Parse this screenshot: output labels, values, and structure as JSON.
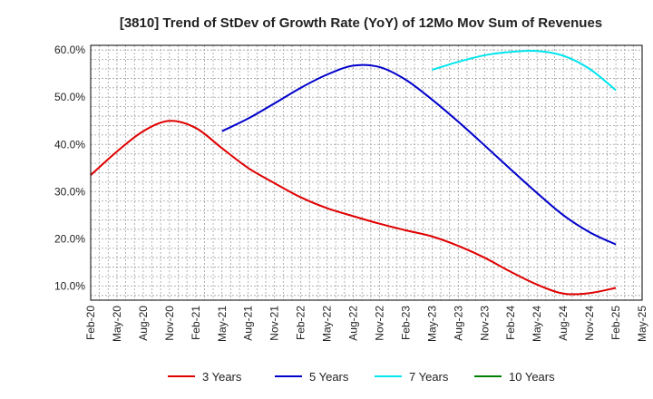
{
  "chart_data": {
    "type": "line",
    "title": "[3810]  Trend of StDev of Growth Rate (YoY) of 12Mo Mov Sum of Revenues",
    "xlabel": "",
    "ylabel": "",
    "ylim": [
      7,
      61
    ],
    "yticks": [
      10,
      20,
      30,
      40,
      50,
      60
    ],
    "ytick_labels": [
      "10.0%",
      "20.0%",
      "30.0%",
      "40.0%",
      "50.0%",
      "60.0%"
    ],
    "x_categories": [
      "Feb-20",
      "May-20",
      "Aug-20",
      "Nov-20",
      "Feb-21",
      "May-21",
      "Aug-21",
      "Nov-21",
      "Feb-22",
      "May-22",
      "Aug-22",
      "Nov-22",
      "Feb-23",
      "May-23",
      "Aug-23",
      "Nov-23",
      "Feb-24",
      "May-24",
      "Aug-24",
      "Nov-24",
      "Feb-25",
      "May-25"
    ],
    "grid": true,
    "legend_position": "bottom",
    "series": [
      {
        "name": "3 Years",
        "color": "#e00000",
        "values": [
          33.5,
          38.5,
          42.8,
          45.0,
          43.5,
          39.2,
          35.0,
          31.8,
          28.8,
          26.5,
          24.8,
          23.2,
          21.8,
          20.5,
          18.5,
          16.0,
          13.0,
          10.3,
          8.4,
          8.5,
          9.6,
          null
        ]
      },
      {
        "name": "5 Years",
        "color": "#0000cc",
        "values": [
          null,
          null,
          null,
          null,
          null,
          42.8,
          45.5,
          48.7,
          52.0,
          54.8,
          56.7,
          56.4,
          53.7,
          49.5,
          44.8,
          39.8,
          34.7,
          29.7,
          25.0,
          21.4,
          18.8,
          null
        ]
      },
      {
        "name": "7 Years",
        "color": "#00e5ee",
        "values": [
          null,
          null,
          null,
          null,
          null,
          null,
          null,
          null,
          null,
          null,
          null,
          null,
          null,
          55.8,
          57.5,
          58.9,
          59.6,
          59.8,
          58.8,
          56.0,
          51.5,
          null
        ]
      },
      {
        "name": "10 Years",
        "color": "#008000",
        "values": []
      }
    ]
  }
}
